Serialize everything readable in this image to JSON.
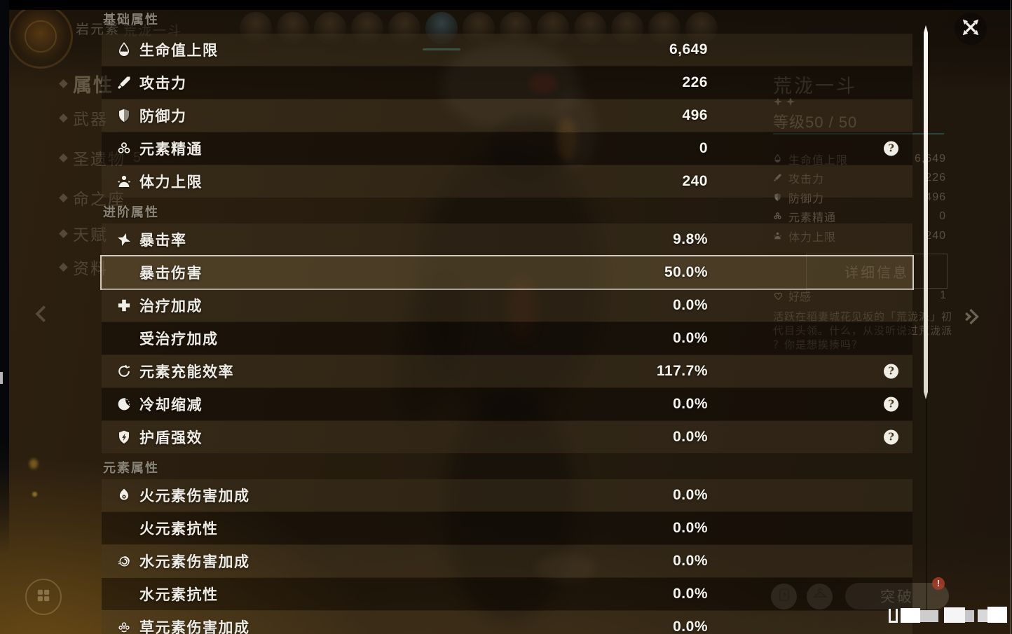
{
  "attribute_panel": {
    "sections": [
      {
        "title": "基础属性",
        "rows": [
          {
            "icon": "hp-icon",
            "label": "生命值上限",
            "value": "6,649",
            "help": false
          },
          {
            "icon": "atk-icon",
            "label": "攻击力",
            "value": "226",
            "help": false
          },
          {
            "icon": "def-icon",
            "label": "防御力",
            "value": "496",
            "help": false
          },
          {
            "icon": "em-icon",
            "label": "元素精通",
            "value": "0",
            "help": true
          },
          {
            "icon": "stamina-icon",
            "label": "体力上限",
            "value": "240",
            "help": false
          }
        ]
      },
      {
        "title": "进阶属性",
        "rows": [
          {
            "icon": "crit-rate-icon",
            "label": "暴击率",
            "value": "9.8%",
            "help": false
          },
          {
            "icon": null,
            "label": "暴击伤害",
            "value": "50.0%",
            "help": false,
            "highlighted": true
          },
          {
            "icon": "healing-icon",
            "label": "治疗加成",
            "value": "0.0%",
            "help": false
          },
          {
            "icon": null,
            "label": "受治疗加成",
            "value": "0.0%",
            "help": false
          },
          {
            "icon": "er-icon",
            "label": "元素充能效率",
            "value": "117.7%",
            "help": true
          },
          {
            "icon": "cd-icon",
            "label": "冷却缩减",
            "value": "0.0%",
            "help": true
          },
          {
            "icon": "shield-strength-icon",
            "label": "护盾强效",
            "value": "0.0%",
            "help": true
          }
        ]
      },
      {
        "title": "元素属性",
        "rows": [
          {
            "icon": "pyro-icon",
            "label": "火元素伤害加成",
            "value": "0.0%",
            "help": false
          },
          {
            "icon": null,
            "label": "火元素抗性",
            "value": "0.0%",
            "help": false
          },
          {
            "icon": "hydro-icon",
            "label": "水元素伤害加成",
            "value": "0.0%",
            "help": false
          },
          {
            "icon": null,
            "label": "水元素抗性",
            "value": "0.0%",
            "help": false
          },
          {
            "icon": "dendro-icon",
            "label": "草元素伤害加成",
            "value": "0.0%",
            "help": false
          }
        ]
      }
    ]
  },
  "background": {
    "element_label": "岩元素",
    "sidebar": {
      "items": [
        {
          "label": "属性",
          "selected": true
        },
        {
          "label": "武器"
        },
        {
          "label": "圣遗物",
          "badge": "5"
        },
        {
          "label": "命之座"
        },
        {
          "label": "天赋"
        },
        {
          "label": "资料"
        }
      ]
    },
    "avatar_strip": {
      "count": 13,
      "selected_index": 5
    },
    "character_card": {
      "name": "荒泷一斗",
      "level": "等级50 / 50",
      "stats": [
        {
          "icon": "hp-icon",
          "label": "生命值上限",
          "value": "6,649"
        },
        {
          "icon": "atk-icon",
          "label": "攻击力",
          "value": "226"
        },
        {
          "icon": "def-icon",
          "label": "防御力",
          "value": "496"
        },
        {
          "icon": "em-icon",
          "label": "元素精通",
          "value": "0"
        },
        {
          "icon": "stamina-icon",
          "label": "体力上限",
          "value": "240"
        }
      ],
      "details_button": "详细信息",
      "friendship": {
        "label": "好感",
        "value": "1"
      },
      "description_lines": [
        "活跃在稻妻城花见坂的「荒泷派」初",
        "代目头领。什么，从没听说过荒泷派",
        "？你是想挨揍吗？"
      ]
    },
    "bottom_bar": {
      "ascend_button": "突破",
      "ascend_badge": "!"
    }
  },
  "colors": {
    "accent_teal": "#34807a",
    "value_text": "#f6f4ee",
    "row_highlight_border": "#e2dfd3",
    "badge_red": "#b23e2a"
  }
}
